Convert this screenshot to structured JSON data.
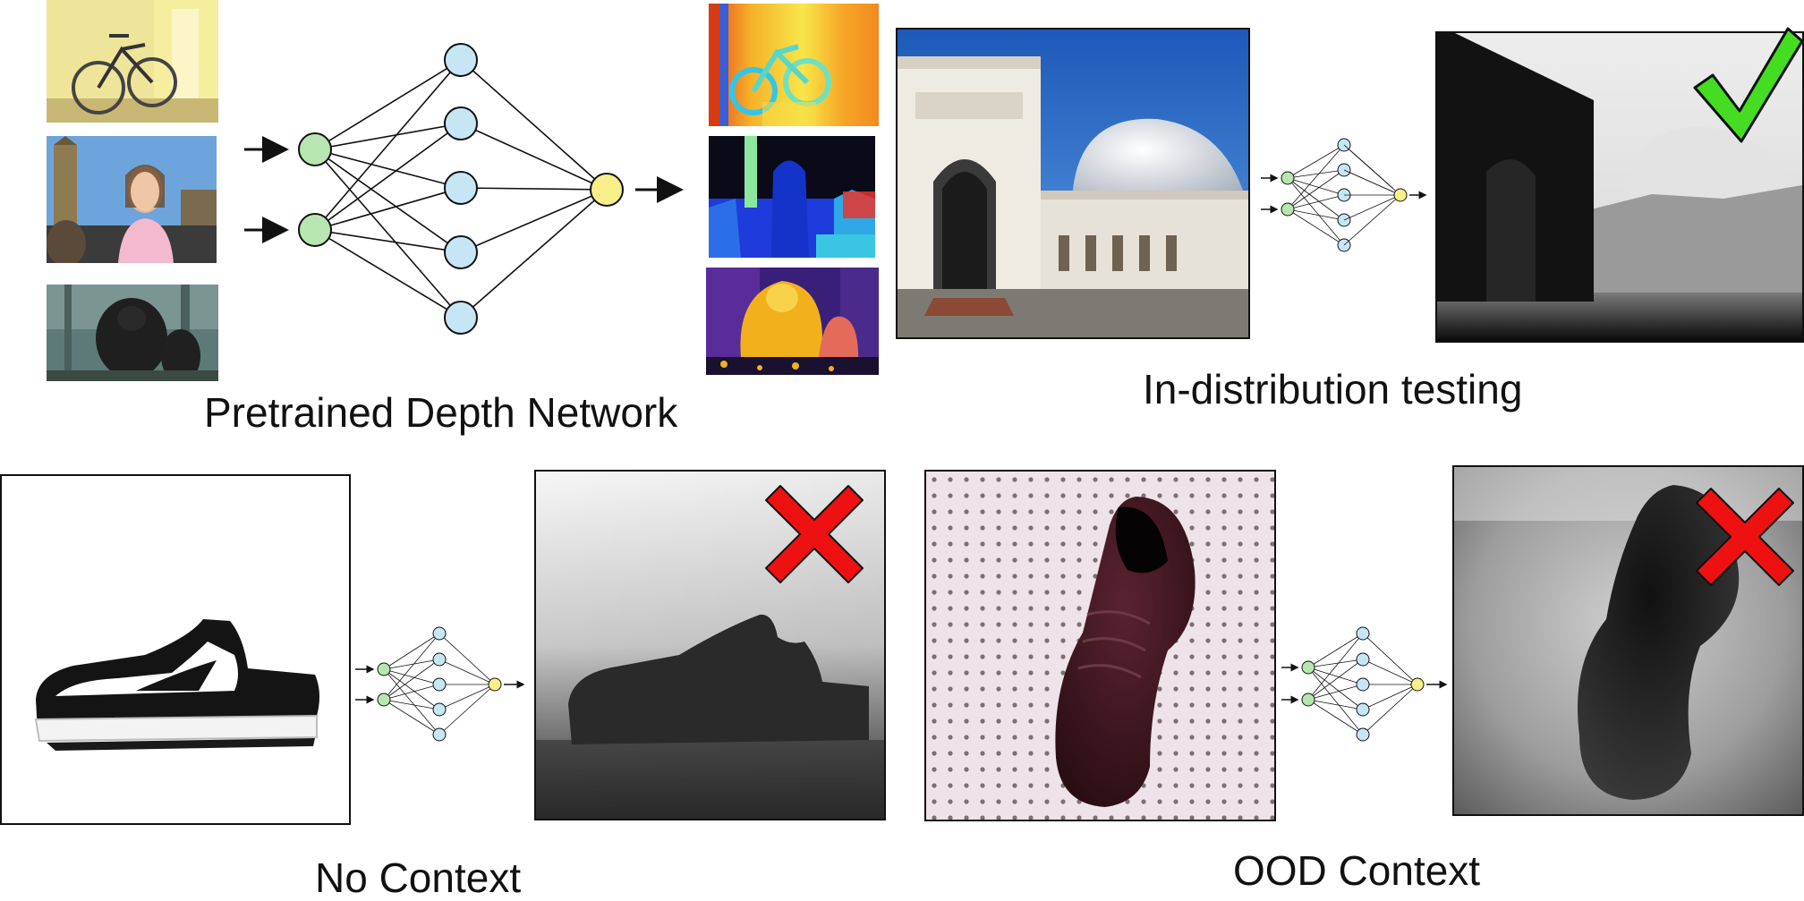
{
  "captions": {
    "pretrained": "Pretrained Depth Network",
    "in_distribution": "In-distribution testing",
    "no_context": "No Context",
    "ood_context": "OOD Context"
  },
  "colors": {
    "input_node": "#b8e6b0",
    "hidden_node": "#c7e6f5",
    "output_node": "#f8ef8a",
    "check": "#44dd22",
    "cross": "#ee1111"
  },
  "icons": {
    "correct": "check-icon",
    "wrong": "cross-icon"
  }
}
